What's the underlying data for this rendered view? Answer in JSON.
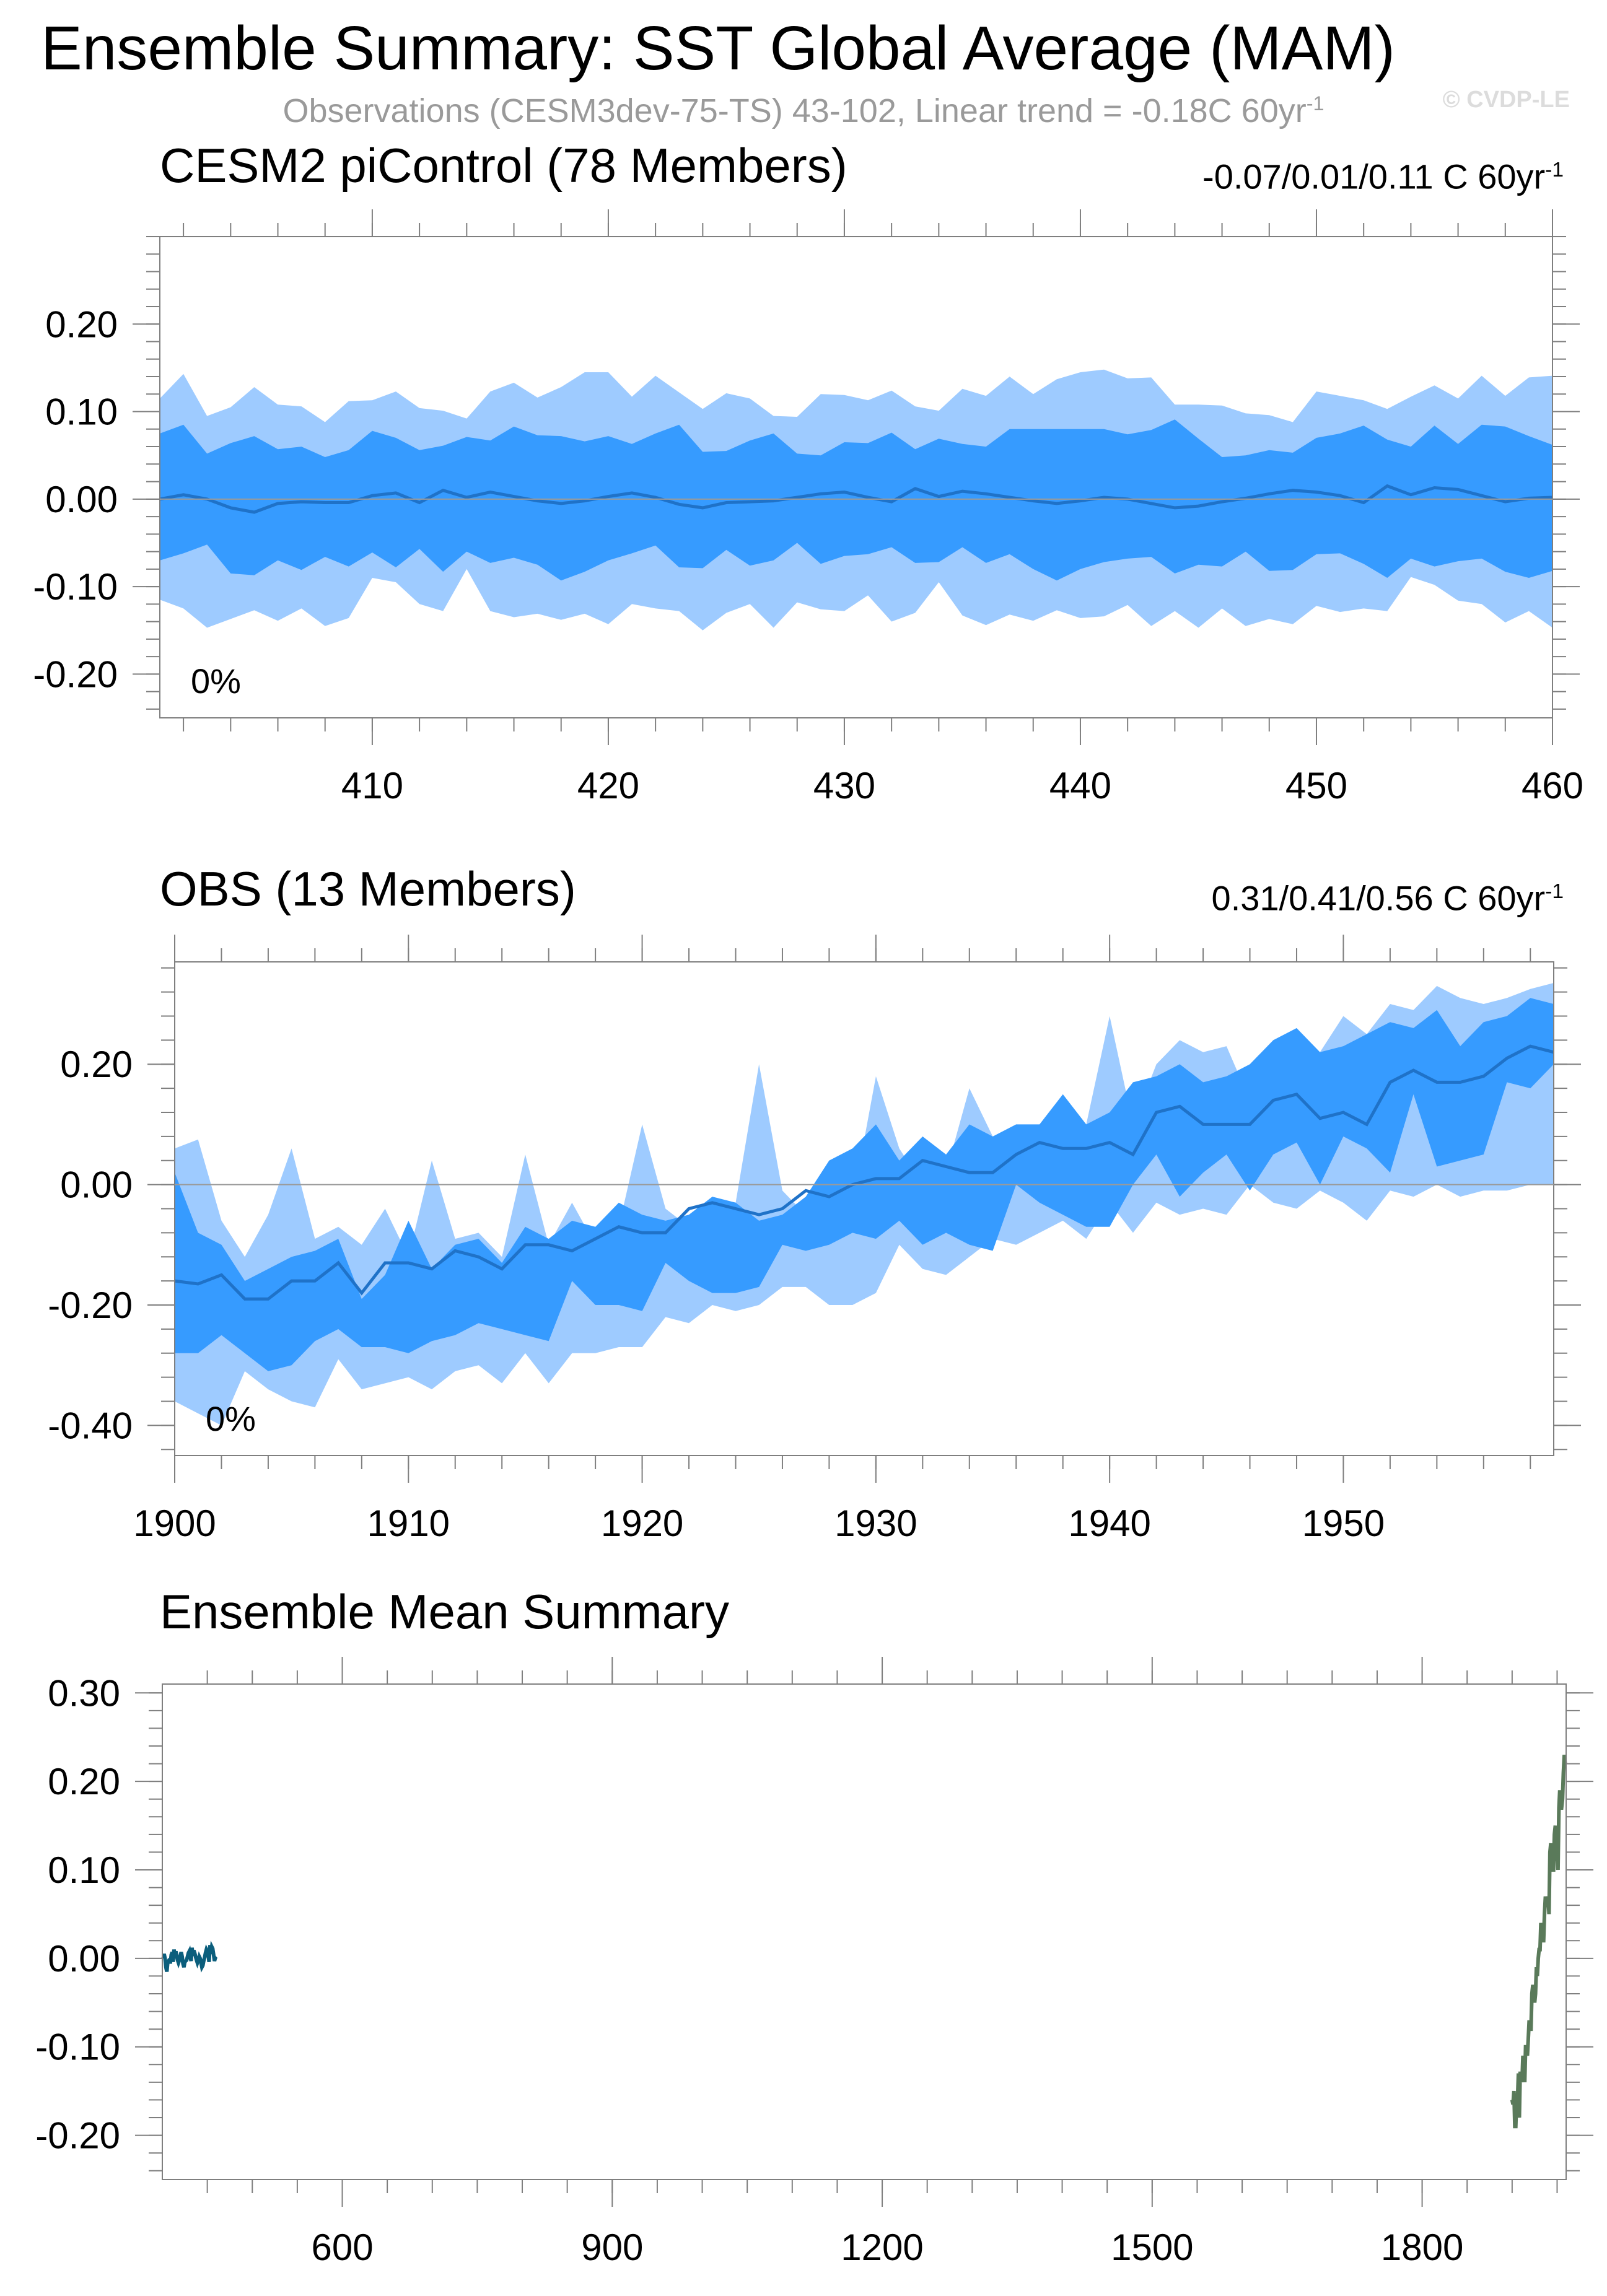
{
  "header": {
    "title": "Ensemble Summary: SST Global Average (MAM)",
    "subtitle_main": "Observations (CESM3dev-75-TS) 43-102, Linear trend = -0.18C 60yr",
    "subtitle_sup": "-1",
    "watermark": "© CVDP-LE"
  },
  "colors": {
    "band_outer": "#9ecbff",
    "band_inner": "#369bff",
    "mean_line": "#1f72c8",
    "cesm_title": "#0b6e8c",
    "obs_title": "#5c8a5c",
    "ensemble_cesm_line": "#0b5e7c",
    "ensemble_obs_line": "#5a7a5a",
    "axis": "#7f7f7f"
  },
  "chart_data": [
    {
      "id": "cesm2",
      "type": "area",
      "title": "CESM2 piControl (78 Members)",
      "trend_main": "-0.07/0.01/0.11 C 60yr",
      "trend_sup": "-1",
      "annotation": "0%",
      "x_start": 401,
      "xlim": [
        401,
        460
      ],
      "ylim": [
        -0.25,
        0.3
      ],
      "xticks": [
        410,
        420,
        430,
        440,
        450,
        460
      ],
      "xtick_labels": [
        "410",
        "420",
        "430",
        "440",
        "450",
        "460"
      ],
      "yticks": [
        -0.2,
        -0.1,
        0.0,
        0.1,
        0.2
      ],
      "ytick_labels": [
        "-0.20",
        "-0.10",
        "0.00",
        "0.10",
        "0.20"
      ],
      "zero_line": true,
      "series": [
        {
          "name": "outer_upper",
          "values": [
            0.115,
            0.143,
            0.095,
            0.105,
            0.128,
            0.108,
            0.106,
            0.088,
            0.112,
            0.113,
            0.123,
            0.104,
            0.101,
            0.092,
            0.123,
            0.133,
            0.116,
            0.128,
            0.145,
            0.145,
            0.117,
            0.141,
            0.122,
            0.103,
            0.121,
            0.115,
            0.095,
            0.094,
            0.12,
            0.119,
            0.113,
            0.124,
            0.106,
            0.101,
            0.126,
            0.118,
            0.14,
            0.12,
            0.137,
            0.145,
            0.148,
            0.138,
            0.139,
            0.108,
            0.108,
            0.107,
            0.098,
            0.096,
            0.088,
            0.123,
            0.118,
            0.113,
            0.103,
            0.117,
            0.13,
            0.115,
            0.141,
            0.118,
            0.139,
            0.141
          ]
        },
        {
          "name": "inner_upper",
          "values": [
            0.075,
            0.085,
            0.052,
            0.064,
            0.072,
            0.057,
            0.06,
            0.048,
            0.056,
            0.078,
            0.07,
            0.056,
            0.061,
            0.071,
            0.067,
            0.083,
            0.073,
            0.072,
            0.066,
            0.072,
            0.063,
            0.075,
            0.085,
            0.054,
            0.055,
            0.067,
            0.075,
            0.052,
            0.05,
            0.065,
            0.064,
            0.076,
            0.057,
            0.069,
            0.063,
            0.06,
            0.08,
            0.08,
            0.08,
            0.08,
            0.08,
            0.074,
            0.079,
            0.091,
            0.069,
            0.048,
            0.05,
            0.056,
            0.053,
            0.07,
            0.075,
            0.084,
            0.068,
            0.06,
            0.084,
            0.063,
            0.085,
            0.083,
            0.072,
            0.062
          ]
        },
        {
          "name": "mean",
          "values": [
            0.0,
            0.005,
            0.0,
            -0.01,
            -0.015,
            -0.005,
            -0.003,
            -0.004,
            -0.004,
            0.004,
            0.007,
            -0.004,
            0.01,
            0.002,
            0.008,
            0.003,
            -0.002,
            -0.005,
            -0.002,
            0.003,
            0.007,
            0.002,
            -0.006,
            -0.01,
            -0.004,
            -0.003,
            -0.002,
            0.002,
            0.006,
            0.008,
            0.002,
            -0.003,
            0.012,
            0.003,
            0.009,
            0.006,
            0.002,
            -0.002,
            -0.005,
            -0.002,
            0.002,
            0.0,
            -0.005,
            -0.01,
            -0.008,
            -0.003,
            0.001,
            0.006,
            0.01,
            0.008,
            0.004,
            -0.004,
            0.015,
            0.005,
            0.013,
            0.011,
            0.004,
            -0.003,
            0.001,
            0.002
          ]
        },
        {
          "name": "inner_lower",
          "values": [
            -0.07,
            -0.062,
            -0.052,
            -0.085,
            -0.087,
            -0.07,
            -0.081,
            -0.066,
            -0.077,
            -0.061,
            -0.078,
            -0.057,
            -0.083,
            -0.06,
            -0.073,
            -0.067,
            -0.075,
            -0.093,
            -0.083,
            -0.07,
            -0.062,
            -0.053,
            -0.078,
            -0.079,
            -0.058,
            -0.076,
            -0.07,
            -0.05,
            -0.074,
            -0.065,
            -0.063,
            -0.055,
            -0.073,
            -0.072,
            -0.055,
            -0.073,
            -0.063,
            -0.08,
            -0.093,
            -0.08,
            -0.072,
            -0.068,
            -0.066,
            -0.085,
            -0.075,
            -0.077,
            -0.06,
            -0.082,
            -0.081,
            -0.063,
            -0.062,
            -0.074,
            -0.09,
            -0.068,
            -0.077,
            -0.071,
            -0.068,
            -0.083,
            -0.09,
            -0.082
          ]
        },
        {
          "name": "outer_lower",
          "values": [
            -0.115,
            -0.125,
            -0.147,
            -0.137,
            -0.127,
            -0.139,
            -0.125,
            -0.145,
            -0.136,
            -0.09,
            -0.095,
            -0.12,
            -0.128,
            -0.08,
            -0.128,
            -0.135,
            -0.131,
            -0.138,
            -0.131,
            -0.143,
            -0.12,
            -0.125,
            -0.128,
            -0.15,
            -0.13,
            -0.12,
            -0.147,
            -0.118,
            -0.126,
            -0.128,
            -0.11,
            -0.14,
            -0.13,
            -0.095,
            -0.133,
            -0.144,
            -0.132,
            -0.139,
            -0.127,
            -0.136,
            -0.134,
            -0.121,
            -0.145,
            -0.128,
            -0.147,
            -0.125,
            -0.145,
            -0.137,
            -0.143,
            -0.122,
            -0.129,
            -0.125,
            -0.128,
            -0.089,
            -0.098,
            -0.116,
            -0.12,
            -0.141,
            -0.128,
            -0.147
          ]
        }
      ]
    },
    {
      "id": "obs",
      "type": "area",
      "title": "OBS (13 Members)",
      "trend_main": "0.31/0.41/0.56 C 60yr",
      "trend_sup": "-1",
      "annotation": "0%",
      "x_start": 1900,
      "xlim": [
        1900,
        1959
      ],
      "ylim": [
        -0.45,
        0.37
      ],
      "xticks": [
        1900,
        1910,
        1920,
        1930,
        1940,
        1950
      ],
      "xtick_labels": [
        "1900",
        "1910",
        "1920",
        "1930",
        "1940",
        "1950"
      ],
      "yticks": [
        -0.4,
        -0.2,
        0.0,
        0.2
      ],
      "ytick_labels": [
        "-0.40",
        "-0.20",
        "0.00",
        "0.20"
      ],
      "zero_line": true,
      "series": [
        {
          "name": "outer_upper",
          "values": [
            0.06,
            0.075,
            -0.06,
            -0.12,
            -0.05,
            0.06,
            -0.09,
            -0.07,
            -0.1,
            -0.04,
            -0.12,
            0.04,
            -0.09,
            -0.08,
            -0.12,
            0.05,
            -0.1,
            -0.03,
            -0.1,
            -0.07,
            0.1,
            -0.04,
            -0.07,
            -0.02,
            -0.03,
            0.2,
            -0.01,
            -0.05,
            -0.02,
            -0.03,
            0.18,
            0.06,
            0.0,
            0.02,
            0.16,
            0.08,
            0.08,
            0.1,
            0.12,
            0.1,
            0.28,
            0.1,
            0.2,
            0.24,
            0.22,
            0.23,
            0.14,
            0.2,
            0.25,
            0.22,
            0.28,
            0.25,
            0.3,
            0.29,
            0.33,
            0.31,
            0.3,
            0.31,
            0.325,
            0.335
          ]
        },
        {
          "name": "inner_upper",
          "values": [
            0.02,
            -0.08,
            -0.1,
            -0.16,
            -0.14,
            -0.12,
            -0.11,
            -0.09,
            -0.19,
            -0.15,
            -0.06,
            -0.14,
            -0.1,
            -0.09,
            -0.13,
            -0.07,
            -0.09,
            -0.06,
            -0.07,
            -0.03,
            -0.05,
            -0.06,
            -0.05,
            -0.02,
            -0.03,
            -0.06,
            -0.05,
            -0.02,
            0.04,
            0.06,
            0.1,
            0.04,
            0.08,
            0.05,
            0.1,
            0.08,
            0.1,
            0.1,
            0.15,
            0.1,
            0.12,
            0.17,
            0.18,
            0.2,
            0.17,
            0.18,
            0.2,
            0.24,
            0.26,
            0.22,
            0.23,
            0.25,
            0.27,
            0.26,
            0.29,
            0.23,
            0.27,
            0.28,
            0.31,
            0.3
          ]
        },
        {
          "name": "mean",
          "values": [
            -0.16,
            -0.165,
            -0.15,
            -0.19,
            -0.19,
            -0.16,
            -0.16,
            -0.13,
            -0.18,
            -0.13,
            -0.13,
            -0.14,
            -0.11,
            -0.12,
            -0.14,
            -0.1,
            -0.1,
            -0.11,
            -0.09,
            -0.07,
            -0.08,
            -0.08,
            -0.04,
            -0.03,
            -0.04,
            -0.05,
            -0.04,
            -0.01,
            -0.02,
            0.0,
            0.01,
            0.01,
            0.04,
            0.03,
            0.02,
            0.02,
            0.05,
            0.07,
            0.06,
            0.06,
            0.07,
            0.05,
            0.12,
            0.13,
            0.1,
            0.1,
            0.1,
            0.14,
            0.15,
            0.11,
            0.12,
            0.1,
            0.17,
            0.19,
            0.17,
            0.17,
            0.18,
            0.21,
            0.23,
            0.22
          ]
        },
        {
          "name": "inner_lower",
          "values": [
            -0.28,
            -0.28,
            -0.25,
            -0.28,
            -0.31,
            -0.3,
            -0.26,
            -0.24,
            -0.27,
            -0.27,
            -0.28,
            -0.26,
            -0.25,
            -0.23,
            -0.24,
            -0.25,
            -0.26,
            -0.16,
            -0.2,
            -0.2,
            -0.21,
            -0.13,
            -0.16,
            -0.18,
            -0.18,
            -0.17,
            -0.1,
            -0.11,
            -0.1,
            -0.08,
            -0.09,
            -0.06,
            -0.1,
            -0.08,
            -0.1,
            -0.11,
            0.0,
            -0.03,
            -0.05,
            -0.07,
            -0.07,
            0.0,
            0.05,
            -0.02,
            0.02,
            0.05,
            -0.01,
            0.05,
            0.07,
            0.0,
            0.08,
            0.06,
            0.02,
            0.15,
            0.03,
            0.04,
            0.05,
            0.17,
            0.16,
            0.2
          ]
        },
        {
          "name": "outer_lower",
          "values": [
            -0.36,
            -0.38,
            -0.4,
            -0.31,
            -0.34,
            -0.36,
            -0.37,
            -0.29,
            -0.34,
            -0.33,
            -0.32,
            -0.34,
            -0.31,
            -0.3,
            -0.33,
            -0.28,
            -0.33,
            -0.28,
            -0.28,
            -0.27,
            -0.27,
            -0.22,
            -0.23,
            -0.2,
            -0.21,
            -0.2,
            -0.17,
            -0.17,
            -0.2,
            -0.2,
            -0.18,
            -0.1,
            -0.14,
            -0.15,
            -0.12,
            -0.09,
            -0.1,
            -0.08,
            -0.06,
            -0.09,
            -0.03,
            -0.08,
            -0.03,
            -0.05,
            -0.04,
            -0.05,
            0.0,
            -0.03,
            -0.04,
            -0.01,
            -0.03,
            -0.06,
            -0.01,
            -0.02,
            0.0,
            -0.02,
            -0.01,
            -0.01,
            0.0,
            0.0
          ]
        }
      ]
    },
    {
      "id": "ensemble_mean",
      "type": "line",
      "title": "Ensemble Mean Summary",
      "xlim": [
        400,
        1960
      ],
      "ylim": [
        -0.25,
        0.31
      ],
      "xticks": [
        600,
        900,
        1200,
        1500,
        1800
      ],
      "xtick_labels": [
        "600",
        "900",
        "1200",
        "1500",
        "1800"
      ],
      "yticks": [
        -0.2,
        -0.1,
        0.0,
        0.1,
        0.2,
        0.3
      ],
      "ytick_labels": [
        "-0.20",
        "-0.10",
        "0.00",
        "0.10",
        "0.20",
        "0.30"
      ],
      "zero_line": false,
      "series": [
        {
          "name": "CESM2 piControl",
          "source": "cesm2"
        },
        {
          "name": "OBS",
          "source": "obs"
        }
      ]
    }
  ]
}
